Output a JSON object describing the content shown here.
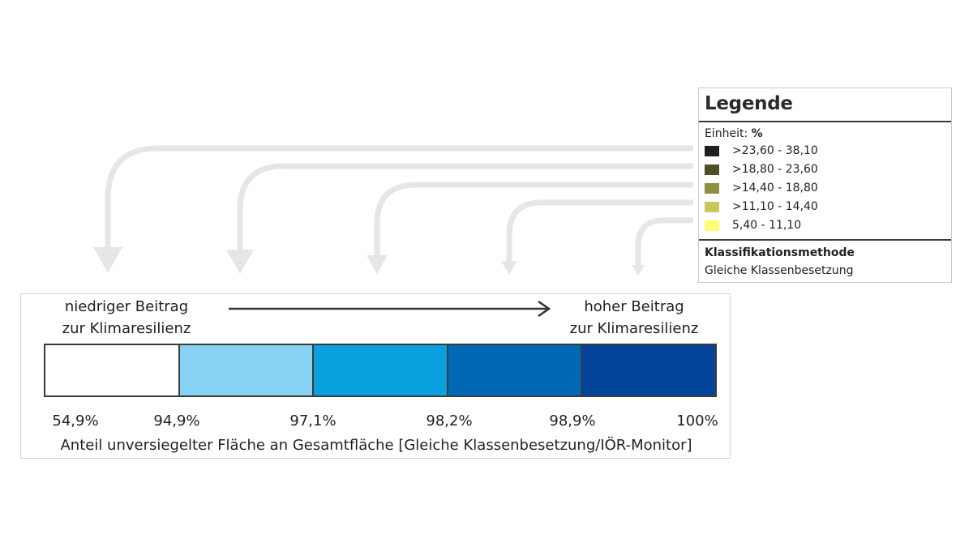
{
  "legend": {
    "title": "Legende",
    "unit_label": "Einheit:",
    "unit_value": "%",
    "classes": [
      {
        "label": ">23,60 - 38,10",
        "color": "#1f1f1f"
      },
      {
        "label": ">18,80 - 23,60",
        "color": "#4e4e26"
      },
      {
        "label": ">14,40 - 18,80",
        "color": "#8f8f3f"
      },
      {
        "label": ">11,10 - 14,40",
        "color": "#c8c85a"
      },
      {
        "label": "5,40 - 11,10",
        "color": "#ffff73"
      }
    ],
    "method_title": "Klassifikationsmethode",
    "method_value": "Gleiche Klassenbesetzung"
  },
  "scale": {
    "left_label_line1": "niedriger Beitrag",
    "left_label_line2": "zur Klimaresilienz",
    "right_label_line1": "hoher Beitrag",
    "right_label_line2": "zur Klimaresilienz",
    "segments": [
      {
        "color": "#ffffff"
      },
      {
        "color": "#87d1f5"
      },
      {
        "color": "#0aa0e0"
      },
      {
        "color": "#0068b4"
      },
      {
        "color": "#02449a"
      }
    ],
    "ticks": [
      "54,9%",
      "94,9%",
      "97,1%",
      "98,2%",
      "98,9%",
      "100%"
    ],
    "caption": "Anteil unversiegelter Fläche an Gesamtfläche [Gleiche Klassenbesetzung/IÖR-Monitor]"
  },
  "colors": {
    "connector_arrow": "#e6e6e6",
    "scale_arrow": "#333333"
  }
}
